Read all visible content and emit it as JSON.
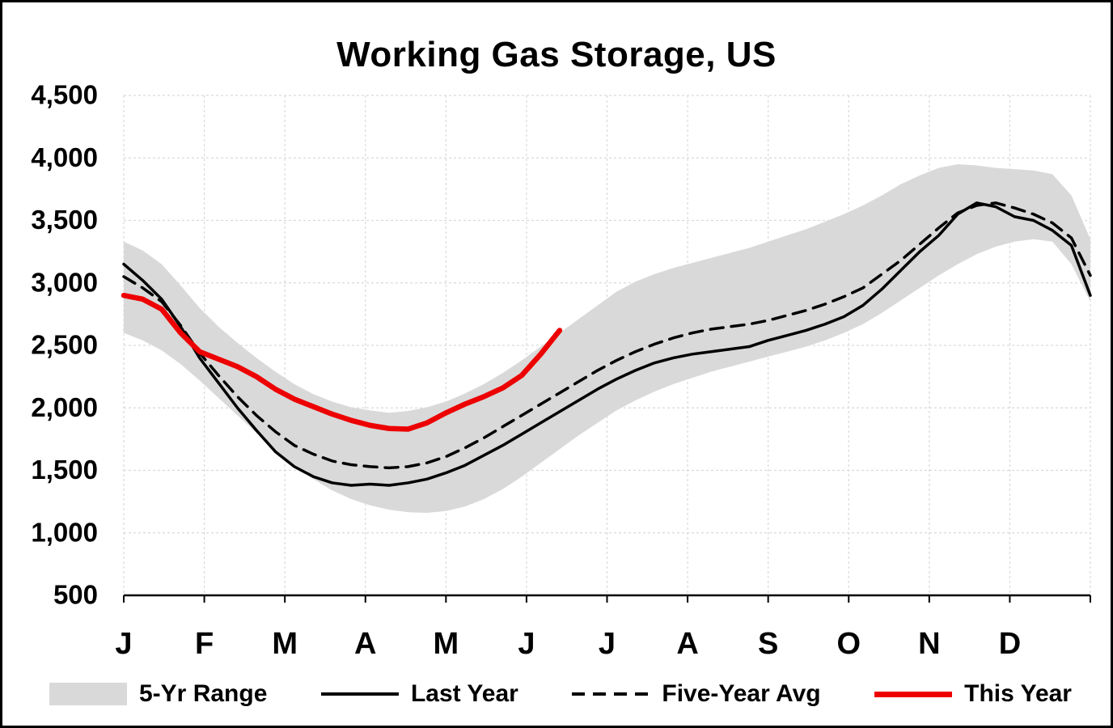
{
  "chart_data": {
    "type": "line",
    "title": "Working Gas Storage, US",
    "x_unit": "weeks, January through December",
    "ylim": [
      500,
      4500
    ],
    "grid": true,
    "legend_position": "bottom",
    "y_ticks": [
      {
        "value": 500,
        "label": "500"
      },
      {
        "value": 1000,
        "label": "1,000"
      },
      {
        "value": 1500,
        "label": "1,500"
      },
      {
        "value": 2000,
        "label": "2,000"
      },
      {
        "value": 2500,
        "label": "2,500"
      },
      {
        "value": 3000,
        "label": "3,000"
      },
      {
        "value": 3500,
        "label": "3,500"
      },
      {
        "value": 4000,
        "label": "4,000"
      },
      {
        "value": 4500,
        "label": "4,500"
      }
    ],
    "x_tick_labels": [
      "J",
      "F",
      "M",
      "A",
      "M",
      "J",
      "J",
      "A",
      "S",
      "O",
      "N",
      "D"
    ],
    "series": [
      {
        "id": "range",
        "name": "5-Yr Range",
        "type": "band",
        "color": "#d9d9d9",
        "upper": [
          3330,
          3260,
          3150,
          2980,
          2800,
          2650,
          2520,
          2400,
          2290,
          2190,
          2110,
          2050,
          2005,
          1980,
          1960,
          1975,
          2005,
          2050,
          2115,
          2190,
          2280,
          2380,
          2490,
          2600,
          2710,
          2820,
          2930,
          3010,
          3070,
          3120,
          3160,
          3200,
          3240,
          3280,
          3330,
          3380,
          3430,
          3490,
          3550,
          3620,
          3700,
          3790,
          3860,
          3920,
          3950,
          3940,
          3920,
          3910,
          3900,
          3870,
          3700,
          3350
        ],
        "lower": [
          2600,
          2540,
          2460,
          2350,
          2220,
          2080,
          1940,
          1800,
          1660,
          1540,
          1430,
          1340,
          1270,
          1220,
          1185,
          1165,
          1160,
          1175,
          1210,
          1270,
          1350,
          1450,
          1560,
          1670,
          1780,
          1880,
          1980,
          2060,
          2130,
          2190,
          2240,
          2290,
          2330,
          2370,
          2410,
          2450,
          2490,
          2540,
          2600,
          2670,
          2760,
          2860,
          2960,
          3060,
          3150,
          3230,
          3290,
          3330,
          3350,
          3330,
          3150,
          2850
        ]
      },
      {
        "id": "last-year",
        "name": "Last Year",
        "type": "line",
        "color": "#000000",
        "width": 3.5,
        "dash": "",
        "values": [
          3150,
          3020,
          2870,
          2650,
          2400,
          2200,
          2000,
          1820,
          1650,
          1530,
          1450,
          1400,
          1380,
          1390,
          1380,
          1400,
          1430,
          1480,
          1540,
          1620,
          1700,
          1790,
          1880,
          1970,
          2060,
          2150,
          2230,
          2300,
          2360,
          2400,
          2430,
          2450,
          2470,
          2490,
          2540,
          2580,
          2620,
          2670,
          2730,
          2820,
          2950,
          3100,
          3250,
          3380,
          3550,
          3640,
          3610,
          3530,
          3500,
          3420,
          3300,
          2900
        ]
      },
      {
        "id": "five-year-avg",
        "name": "Five-Year Avg",
        "type": "line",
        "color": "#000000",
        "width": 3.5,
        "dash": "16 10",
        "values": [
          3050,
          2960,
          2850,
          2660,
          2440,
          2260,
          2090,
          1940,
          1810,
          1700,
          1630,
          1575,
          1545,
          1530,
          1520,
          1530,
          1560,
          1610,
          1680,
          1760,
          1850,
          1940,
          2030,
          2120,
          2210,
          2300,
          2380,
          2450,
          2510,
          2560,
          2600,
          2630,
          2650,
          2670,
          2700,
          2740,
          2780,
          2830,
          2890,
          2960,
          3070,
          3180,
          3310,
          3440,
          3560,
          3620,
          3640,
          3600,
          3550,
          3480,
          3360,
          3060
        ]
      },
      {
        "id": "this-year",
        "name": "This Year",
        "type": "line",
        "color": "#ed0000",
        "width": 6.5,
        "dash": "",
        "values": [
          2900,
          2870,
          2790,
          2600,
          2450,
          2390,
          2330,
          2250,
          2150,
          2070,
          2010,
          1950,
          1900,
          1860,
          1835,
          1830,
          1880,
          1960,
          2030,
          2090,
          2160,
          2260,
          2430,
          2620
        ]
      }
    ],
    "legend": [
      {
        "label": "5-Yr Range",
        "swatch": "band"
      },
      {
        "label": "Last Year",
        "swatch": "solid"
      },
      {
        "label": "Five-Year Avg",
        "swatch": "dashed"
      },
      {
        "label": "This Year",
        "swatch": "red"
      }
    ]
  }
}
